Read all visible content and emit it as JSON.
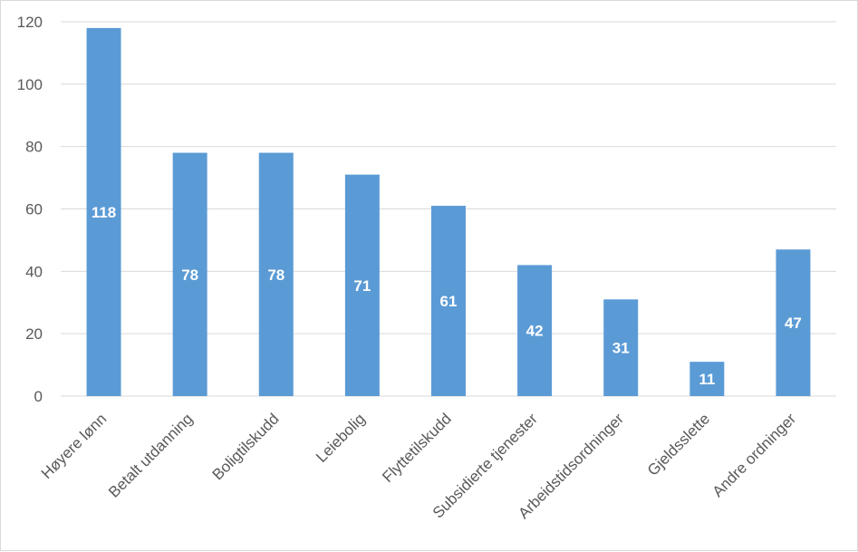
{
  "chart_data": {
    "type": "bar",
    "categories": [
      "Høyere lønn",
      "Betalt utdanning",
      "Boligtilskudd",
      "Leiebolig",
      "Flyttetilskudd",
      "Subsidierte tjenester",
      "Arbeidstidsordninger",
      "Gjeldsslette",
      "Andre ordninger"
    ],
    "values": [
      118,
      78,
      78,
      71,
      61,
      42,
      31,
      11,
      47
    ],
    "title": "",
    "xlabel": "",
    "ylabel": "",
    "ylim": [
      0,
      120
    ],
    "yticks": [
      "0",
      "20",
      "40",
      "60",
      "80",
      "100",
      "120"
    ],
    "grid": true,
    "legend": "none",
    "bar_color": "#5b9bd5",
    "data_label_color": "#ffffff"
  }
}
